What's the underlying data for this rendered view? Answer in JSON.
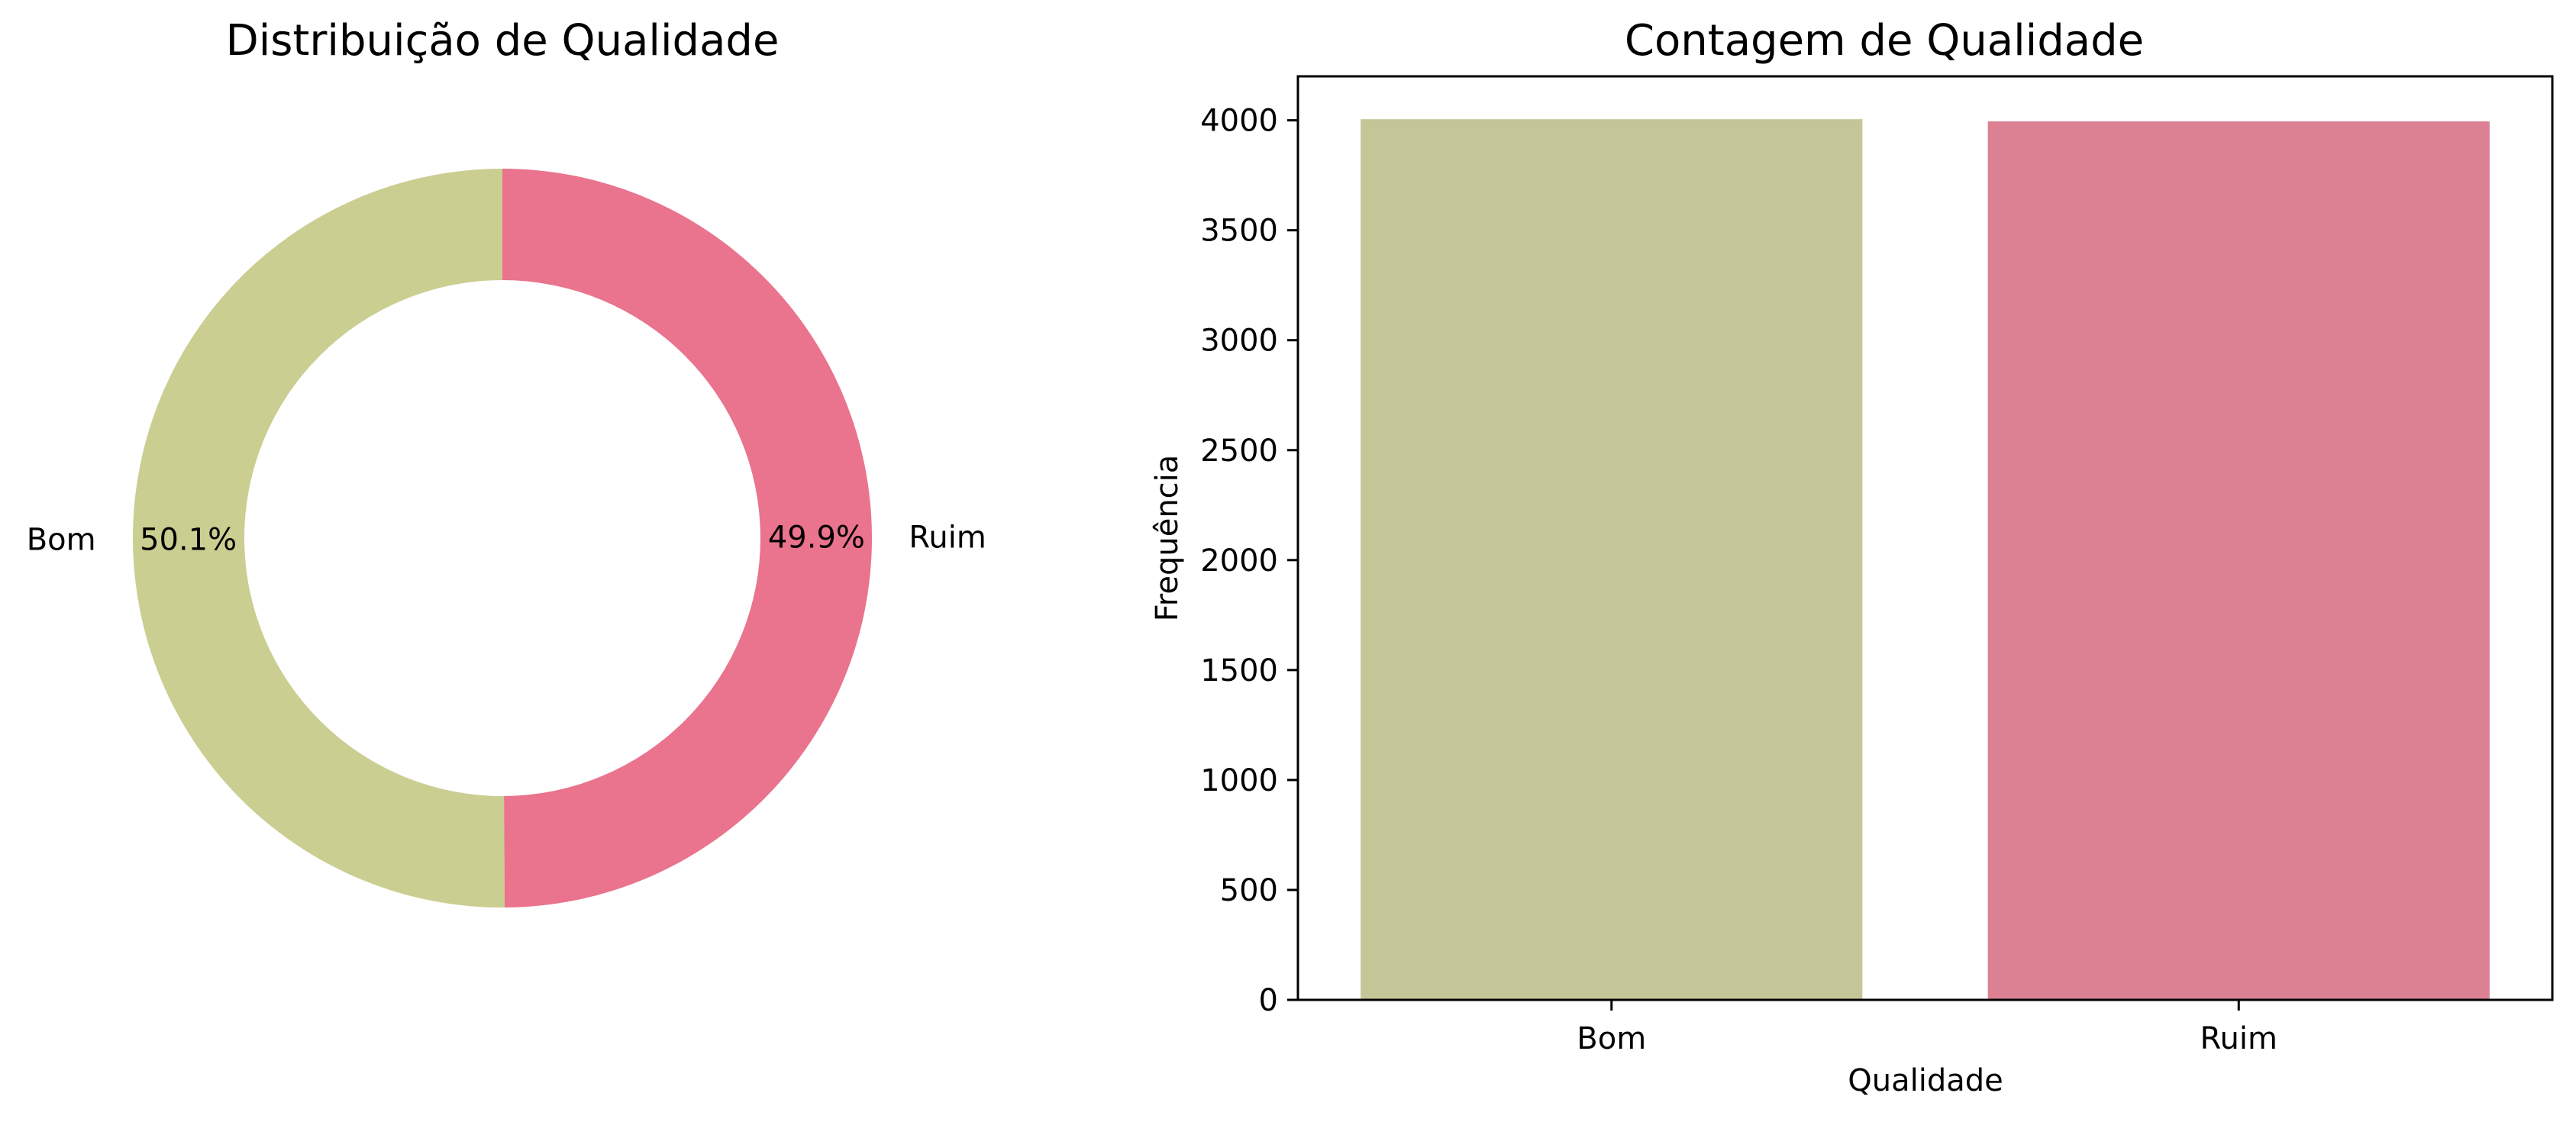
{
  "colors": {
    "bom_pie": "#cbce91",
    "ruim_pie": "#ea738d",
    "bom_bar": "#c4c698",
    "ruim_bar": "#dc8194"
  },
  "chart_data": [
    {
      "type": "pie",
      "title": "Distribuição de Qualidade",
      "donut": true,
      "categories": [
        "Bom",
        "Ruim"
      ],
      "values": [
        50.1,
        49.9
      ],
      "value_labels": [
        "50.1%",
        "49.9%"
      ]
    },
    {
      "type": "bar",
      "title": "Contagem de Qualidade",
      "xlabel": "Qualidade",
      "ylabel": "Frequência",
      "categories": [
        "Bom",
        "Ruim"
      ],
      "values": [
        4005,
        3995
      ],
      "ylim": [
        0,
        4200
      ],
      "yticks": [
        0,
        500,
        1000,
        1500,
        2000,
        2500,
        3000,
        3500,
        4000
      ],
      "grid": false
    }
  ]
}
